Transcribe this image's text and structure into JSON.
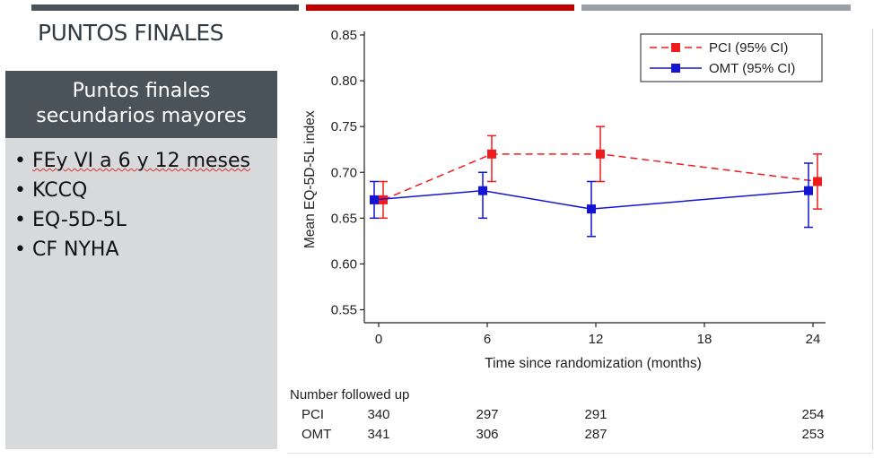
{
  "slide": {
    "title": "PUNTOS FINALES",
    "panel_header_line1": "Puntos finales",
    "panel_header_line2": "secundarios mayores",
    "items": [
      "FEy VI a 6 y 12 meses",
      "KCCQ",
      "EQ-5D-5L",
      "CF NYHA"
    ]
  },
  "colors": {
    "pci": "#ee1c1c",
    "omt": "#1414d2",
    "header_bg": "#4a535a",
    "panel_bg": "#d8d9da",
    "accent_red": "#c00000"
  },
  "chart_data": {
    "type": "line",
    "title": "",
    "xlabel": "Time since randomization (months)",
    "ylabel": "Mean EQ-5D-5L index",
    "xlim": [
      0,
      24
    ],
    "ylim": [
      0.55,
      0.85
    ],
    "x_ticks": [
      0,
      6,
      12,
      18,
      24
    ],
    "y_ticks": [
      0.55,
      0.6,
      0.65,
      0.7,
      0.75,
      0.8,
      0.85
    ],
    "y_tick_labels": [
      "0.55",
      "0.60",
      "0.65",
      "0.70",
      "0.75",
      "0.80",
      "0.85"
    ],
    "legend_position": "top-right",
    "grid": false,
    "series": [
      {
        "name": "PCI (95% CI)",
        "style": "dashed",
        "x": [
          0,
          6,
          12,
          24
        ],
        "values": [
          0.67,
          0.72,
          0.72,
          0.69
        ],
        "ci_low": [
          0.65,
          0.69,
          0.69,
          0.66
        ],
        "ci_high": [
          0.69,
          0.74,
          0.75,
          0.72
        ]
      },
      {
        "name": "OMT (95% CI)",
        "style": "solid",
        "x": [
          0,
          6,
          12,
          24
        ],
        "values": [
          0.67,
          0.68,
          0.66,
          0.68
        ],
        "ci_low": [
          0.65,
          0.65,
          0.63,
          0.64
        ],
        "ci_high": [
          0.69,
          0.7,
          0.69,
          0.71
        ]
      }
    ],
    "followup": {
      "title": "Number followed up",
      "rows": [
        {
          "label": "PCI",
          "values": [
            "340",
            "297",
            "291",
            "254"
          ]
        },
        {
          "label": "OMT",
          "values": [
            "341",
            "306",
            "287",
            "253"
          ]
        }
      ]
    }
  }
}
